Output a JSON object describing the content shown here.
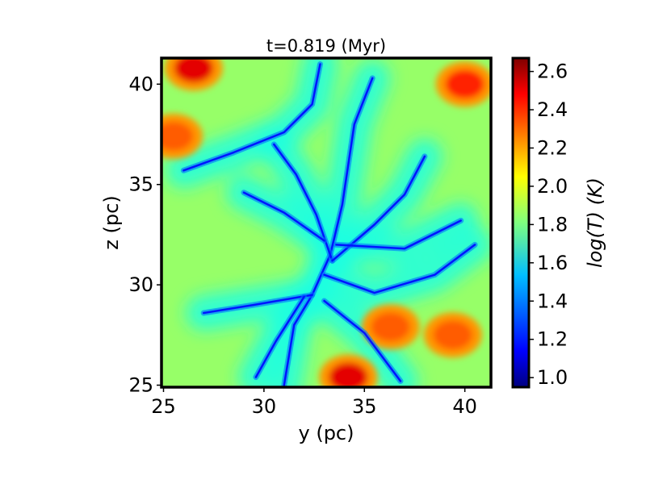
{
  "chart_data": {
    "type": "heatmap",
    "title": "t=0.819 (Myr)",
    "xlabel": "y (pc)",
    "ylabel": "z (pc)",
    "xlim": [
      24.9,
      41.3
    ],
    "ylim": [
      24.9,
      41.3
    ],
    "xticks": [
      25,
      30,
      35,
      40
    ],
    "yticks": [
      25,
      30,
      35,
      40
    ],
    "colorbar": {
      "label": "log(T) (K)",
      "min": 0.95,
      "max": 2.67,
      "ticks": [
        1.0,
        1.2,
        1.4,
        1.6,
        1.8,
        2.0,
        2.2,
        2.4,
        2.6
      ],
      "colormap": "jet"
    },
    "field_features": {
      "background_level": 1.85,
      "hot_regions": [
        {
          "y": 26.5,
          "z": 40.8,
          "value": 2.5
        },
        {
          "y": 40.0,
          "z": 40.0,
          "value": 2.4
        },
        {
          "y": 25.5,
          "z": 37.4,
          "value": 2.3
        },
        {
          "y": 34.2,
          "z": 25.4,
          "value": 2.5
        },
        {
          "y": 36.3,
          "z": 27.9,
          "value": 2.3
        },
        {
          "y": 39.4,
          "z": 27.5,
          "value": 2.3
        }
      ],
      "cold_filaments_level": 1.2,
      "cold_filament_paths": [
        [
          [
            31.0,
            25.0
          ],
          [
            31.5,
            28.0
          ],
          [
            32.4,
            29.5
          ],
          [
            33.3,
            31.5
          ],
          [
            33.9,
            34.0
          ],
          [
            34.5,
            38.0
          ],
          [
            35.4,
            40.3
          ]
        ],
        [
          [
            30.5,
            37.0
          ],
          [
            31.6,
            35.5
          ],
          [
            32.6,
            33.5
          ],
          [
            33.4,
            31.2
          ]
        ],
        [
          [
            26.0,
            35.7
          ],
          [
            28.5,
            36.6
          ],
          [
            31.0,
            37.6
          ],
          [
            32.4,
            39.0
          ],
          [
            32.8,
            41.0
          ]
        ],
        [
          [
            33.4,
            31.2
          ],
          [
            35.5,
            33.0
          ],
          [
            37.0,
            34.5
          ],
          [
            38.0,
            36.4
          ]
        ],
        [
          [
            33.0,
            30.5
          ],
          [
            35.5,
            29.6
          ],
          [
            38.5,
            30.5
          ],
          [
            40.5,
            32.0
          ]
        ],
        [
          [
            32.4,
            29.5
          ],
          [
            29.5,
            29.0
          ],
          [
            27.0,
            28.6
          ]
        ],
        [
          [
            33.0,
            29.2
          ],
          [
            35.0,
            27.6
          ],
          [
            36.8,
            25.2
          ]
        ],
        [
          [
            32.0,
            29.4
          ],
          [
            30.6,
            27.2
          ],
          [
            29.6,
            25.4
          ]
        ],
        [
          [
            33.6,
            32.0
          ],
          [
            37.0,
            31.8
          ],
          [
            39.8,
            33.2
          ]
        ],
        [
          [
            29.0,
            34.6
          ],
          [
            31.0,
            33.6
          ],
          [
            33.0,
            32.2
          ]
        ]
      ]
    }
  }
}
